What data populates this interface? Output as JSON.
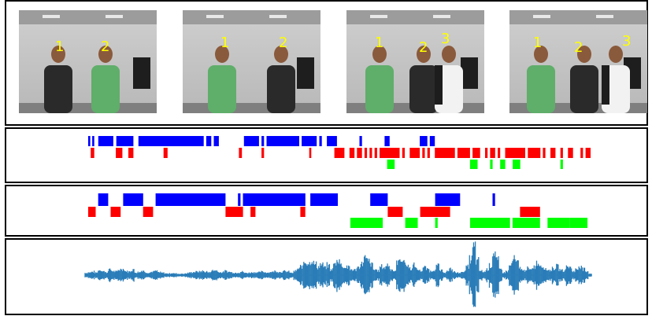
{
  "colors": {
    "speaker_a": "#0000ff",
    "speaker_b": "#ff0000",
    "speaker_c": "#00ff00",
    "waveform": "#2a7db8",
    "label": "#ffff00",
    "border": "#000000"
  },
  "frames": [
    {
      "labels": [
        "1",
        "2"
      ]
    },
    {
      "labels": [
        "1",
        "2"
      ]
    },
    {
      "labels": [
        "1",
        "2",
        "3"
      ]
    },
    {
      "labels": [
        "1",
        "2",
        "3"
      ]
    }
  ],
  "timelines": [
    {
      "rows": [
        {
          "speaker": "speaker_a",
          "segments": [
            [
              0,
              0.004
            ],
            [
              0.008,
              0.012
            ],
            [
              0.02,
              0.05
            ],
            [
              0.056,
              0.09
            ],
            [
              0.1,
              0.23
            ],
            [
              0.235,
              0.245
            ],
            [
              0.25,
              0.26
            ],
            [
              0.31,
              0.34
            ],
            [
              0.345,
              0.35
            ],
            [
              0.355,
              0.42
            ],
            [
              0.425,
              0.455
            ],
            [
              0.46,
              0.465
            ],
            [
              0.475,
              0.495
            ],
            [
              0.54,
              0.545
            ],
            [
              0.59,
              0.6
            ],
            [
              0.66,
              0.675
            ],
            [
              0.68,
              0.69
            ]
          ]
        },
        {
          "speaker": "speaker_b",
          "segments": [
            [
              0.005,
              0.012
            ],
            [
              0.055,
              0.068
            ],
            [
              0.08,
              0.09
            ],
            [
              0.15,
              0.158
            ],
            [
              0.3,
              0.306
            ],
            [
              0.345,
              0.35
            ],
            [
              0.44,
              0.444
            ],
            [
              0.49,
              0.51
            ],
            [
              0.52,
              0.53
            ],
            [
              0.535,
              0.545
            ],
            [
              0.55,
              0.555
            ],
            [
              0.56,
              0.565
            ],
            [
              0.57,
              0.575
            ],
            [
              0.58,
              0.62
            ],
            [
              0.625,
              0.63
            ],
            [
              0.64,
              0.66
            ],
            [
              0.665,
              0.67
            ],
            [
              0.675,
              0.68
            ],
            [
              0.69,
              0.73
            ],
            [
              0.735,
              0.76
            ],
            [
              0.765,
              0.78
            ],
            [
              0.79,
              0.795
            ],
            [
              0.8,
              0.81
            ],
            [
              0.815,
              0.82
            ],
            [
              0.83,
              0.87
            ],
            [
              0.875,
              0.9
            ],
            [
              0.905,
              0.91
            ],
            [
              0.92,
              0.93
            ],
            [
              0.94,
              0.945
            ],
            [
              0.955,
              0.965
            ],
            [
              0.98,
              0.985
            ],
            [
              0.99,
              1.0
            ]
          ]
        },
        {
          "speaker": "speaker_c",
          "segments": [
            [
              0.595,
              0.61
            ],
            [
              0.76,
              0.775
            ],
            [
              0.8,
              0.805
            ],
            [
              0.82,
              0.83
            ],
            [
              0.845,
              0.86
            ],
            [
              0.94,
              0.945
            ]
          ]
        }
      ]
    },
    {
      "rows": [
        {
          "speaker": "speaker_a",
          "segments": [
            [
              0.02,
              0.04
            ],
            [
              0.07,
              0.11
            ],
            [
              0.135,
              0.275
            ],
            [
              0.3,
              0.305
            ],
            [
              0.31,
              0.435
            ],
            [
              0.445,
              0.5
            ],
            [
              0.565,
              0.6
            ],
            [
              0.695,
              0.745
            ],
            [
              0.81,
              0.815
            ]
          ]
        },
        {
          "speaker": "speaker_b",
          "segments": [
            [
              0,
              0.015
            ],
            [
              0.045,
              0.065
            ],
            [
              0.11,
              0.13
            ],
            [
              0.275,
              0.31
            ],
            [
              0.325,
              0.335
            ],
            [
              0.425,
              0.435
            ],
            [
              0.6,
              0.63
            ],
            [
              0.665,
              0.725
            ],
            [
              0.865,
              0.905
            ]
          ]
        },
        {
          "speaker": "speaker_c",
          "segments": [
            [
              0.525,
              0.59
            ],
            [
              0.635,
              0.66
            ],
            [
              0.695,
              0.7
            ],
            [
              0.765,
              0.845
            ],
            [
              0.85,
              0.905
            ],
            [
              0.92,
              0.965
            ],
            [
              0.965,
              1.0
            ]
          ]
        }
      ]
    }
  ],
  "waveform": {
    "envelope": [
      0.08,
      0.1,
      0.12,
      0.09,
      0.18,
      0.16,
      0.1,
      0.2,
      0.15,
      0.12,
      0.2,
      0.22,
      0.14,
      0.12,
      0.2,
      0.1,
      0.12,
      0.16,
      0.1,
      0.09,
      0.12,
      0.14,
      0.1,
      0.08,
      0.06,
      0.06,
      0.07,
      0.06,
      0.05,
      0.05,
      0.06,
      0.08,
      0.1,
      0.12,
      0.12,
      0.14,
      0.12,
      0.1,
      0.16,
      0.18,
      0.12,
      0.1,
      0.14,
      0.12,
      0.1,
      0.08,
      0.1,
      0.12,
      0.08,
      0.08,
      0.1,
      0.1,
      0.1,
      0.12,
      0.1,
      0.1,
      0.12,
      0.14,
      0.12,
      0.12,
      0.14,
      0.12,
      0.08,
      0.14,
      0.22,
      0.3,
      0.5,
      0.46,
      0.52,
      0.4,
      0.3,
      0.36,
      0.28,
      0.34,
      0.2,
      0.42,
      0.56,
      0.38,
      0.28,
      0.3,
      0.2,
      0.18,
      0.26,
      0.4,
      0.6,
      0.52,
      0.38,
      0.2,
      0.16,
      0.3,
      0.28,
      0.38,
      0.22,
      0.14,
      0.46,
      0.6,
      0.48,
      0.32,
      0.24,
      0.34,
      0.2,
      0.16,
      0.26,
      0.22,
      0.14,
      0.2,
      0.34,
      0.16,
      0.1,
      0.14,
      0.2,
      0.12,
      0.08,
      0.1,
      0.14,
      0.3,
      0.56,
      1.0,
      0.5,
      0.16,
      0.12,
      0.22,
      0.36,
      0.78,
      0.54,
      0.2,
      0.1,
      0.14,
      0.36,
      0.56,
      0.46,
      0.24,
      0.16,
      0.24,
      0.18,
      0.3,
      0.44,
      0.36,
      0.3,
      0.2,
      0.18,
      0.26,
      0.3,
      0.2,
      0.16,
      0.32,
      0.28,
      0.14,
      0.2,
      0.34,
      0.22,
      0.12,
      0.06
    ]
  }
}
